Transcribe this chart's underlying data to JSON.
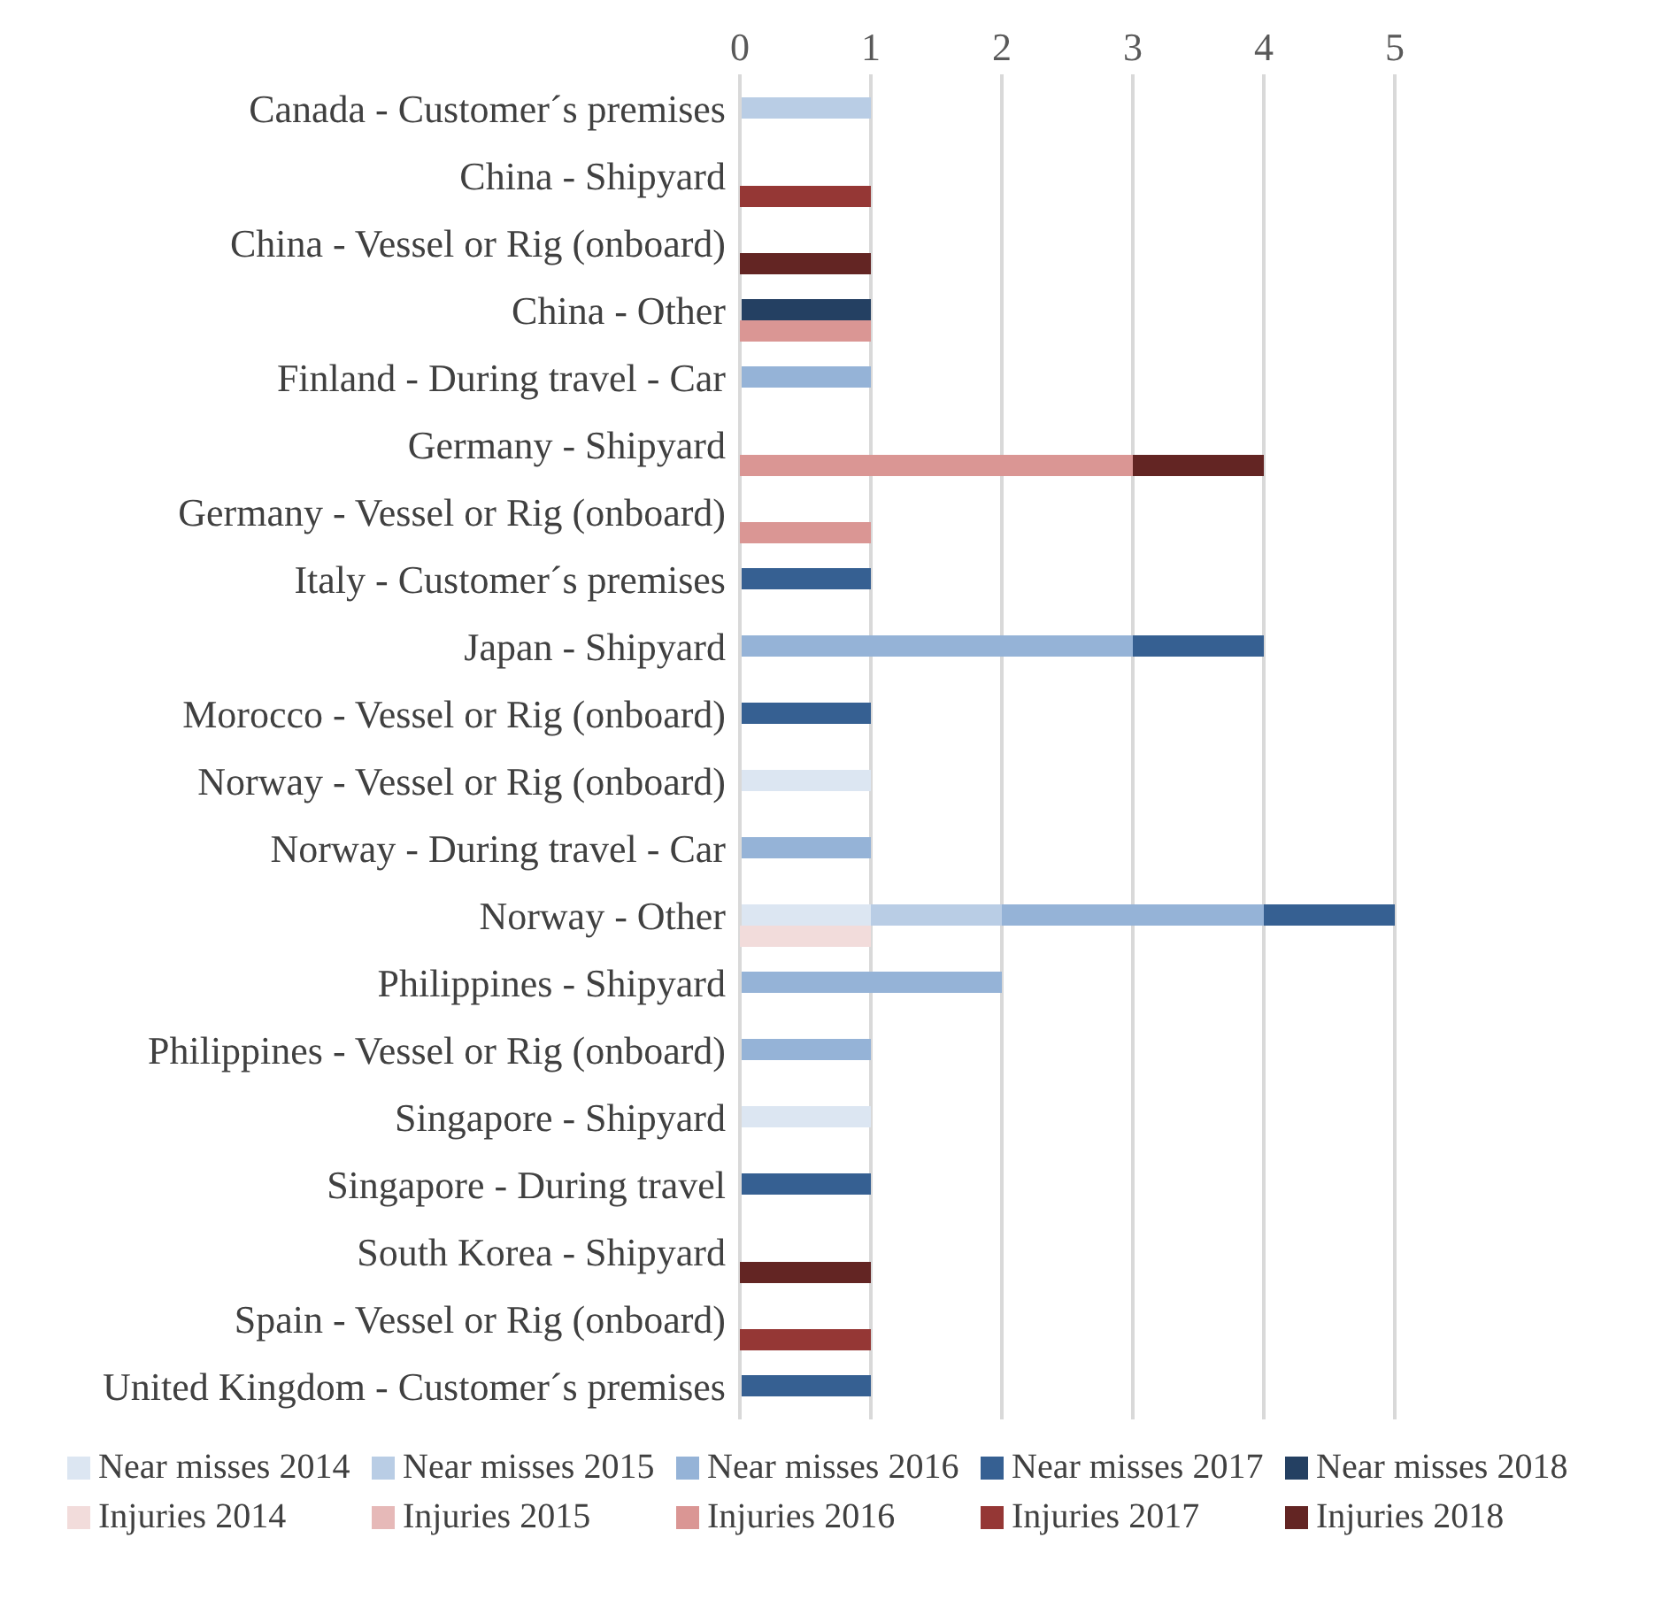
{
  "chart_data": [
    {
      "type": "bar",
      "orientation": "horizontal",
      "stacked": true,
      "categories": [
        "Canada - Customer´s premises",
        "China - Shipyard",
        "China - Vessel or Rig (onboard)",
        "China - Other",
        "Finland - During travel - Car",
        "Germany - Shipyard",
        "Germany - Vessel or Rig (onboard)",
        "Italy - Customer´s premises",
        "Japan - Shipyard",
        "Morocco - Vessel or Rig (onboard)",
        "Norway - Vessel or Rig (onboard)",
        "Norway - During travel - Car",
        "Norway - Other",
        "Philippines - Shipyard",
        "Philippines - Vessel or Rig (onboard)",
        "Singapore - Shipyard",
        "Singapore - During travel",
        "South Korea - Shipyard",
        "Spain - Vessel or Rig (onboard)",
        "United Kingdom - Customer´s premises"
      ],
      "series": [
        {
          "name": "Near misses 2014",
          "color": "#dce6f2",
          "values": [
            null,
            null,
            null,
            null,
            null,
            null,
            null,
            null,
            null,
            null,
            1,
            null,
            1,
            null,
            null,
            1,
            null,
            null,
            null,
            null
          ]
        },
        {
          "name": "Near misses 2015",
          "color": "#b9cde5",
          "values": [
            1,
            null,
            null,
            null,
            null,
            null,
            null,
            null,
            null,
            null,
            null,
            null,
            1,
            null,
            null,
            null,
            null,
            null,
            null,
            null
          ]
        },
        {
          "name": "Near misses 2016",
          "color": "#95b3d7",
          "values": [
            null,
            null,
            null,
            null,
            1,
            null,
            null,
            null,
            3,
            null,
            null,
            1,
            2,
            2,
            1,
            null,
            null,
            null,
            null,
            null
          ]
        },
        {
          "name": "Near misses 2017",
          "color": "#366092",
          "values": [
            null,
            null,
            null,
            null,
            null,
            null,
            null,
            1,
            1,
            1,
            null,
            null,
            1,
            null,
            null,
            null,
            1,
            null,
            null,
            1
          ]
        },
        {
          "name": "Near misses 2018",
          "color": "#244062",
          "values": [
            null,
            null,
            null,
            1,
            null,
            null,
            null,
            null,
            null,
            null,
            null,
            null,
            null,
            null,
            null,
            null,
            null,
            null,
            null,
            null
          ]
        }
      ],
      "xlim": [
        0,
        5
      ],
      "xticks": [
        0,
        1,
        2,
        3,
        4,
        5
      ],
      "grid": "x",
      "legend": "bottom"
    },
    {
      "type": "bar",
      "orientation": "horizontal",
      "stacked": true,
      "series": [
        {
          "name": "Injuries 2014",
          "color": "#f2dcdb",
          "values": [
            null,
            null,
            null,
            null,
            null,
            null,
            null,
            null,
            null,
            null,
            null,
            null,
            1,
            null,
            null,
            null,
            null,
            null,
            null,
            null
          ]
        },
        {
          "name": "Injuries 2015",
          "color": "#e6b9b8",
          "values": [
            null,
            null,
            null,
            null,
            null,
            null,
            null,
            null,
            null,
            null,
            null,
            null,
            null,
            null,
            null,
            null,
            null,
            null,
            null,
            null
          ]
        },
        {
          "name": "Injuries 2016",
          "color": "#da9694",
          "values": [
            null,
            null,
            null,
            1,
            null,
            3,
            1,
            null,
            null,
            null,
            null,
            null,
            null,
            null,
            null,
            null,
            null,
            null,
            null,
            null
          ]
        },
        {
          "name": "Injuries 2017",
          "color": "#953735",
          "values": [
            null,
            1,
            null,
            null,
            null,
            null,
            null,
            null,
            null,
            null,
            null,
            null,
            null,
            null,
            null,
            null,
            null,
            null,
            1,
            null
          ]
        },
        {
          "name": "Injuries 2018",
          "color": "#632523",
          "values": [
            null,
            null,
            1,
            null,
            null,
            1,
            null,
            null,
            null,
            null,
            null,
            null,
            null,
            null,
            null,
            null,
            null,
            1,
            null,
            null
          ]
        }
      ],
      "xlim": [
        0,
        5
      ],
      "tick_labels": false,
      "legend": "bottom"
    }
  ]
}
